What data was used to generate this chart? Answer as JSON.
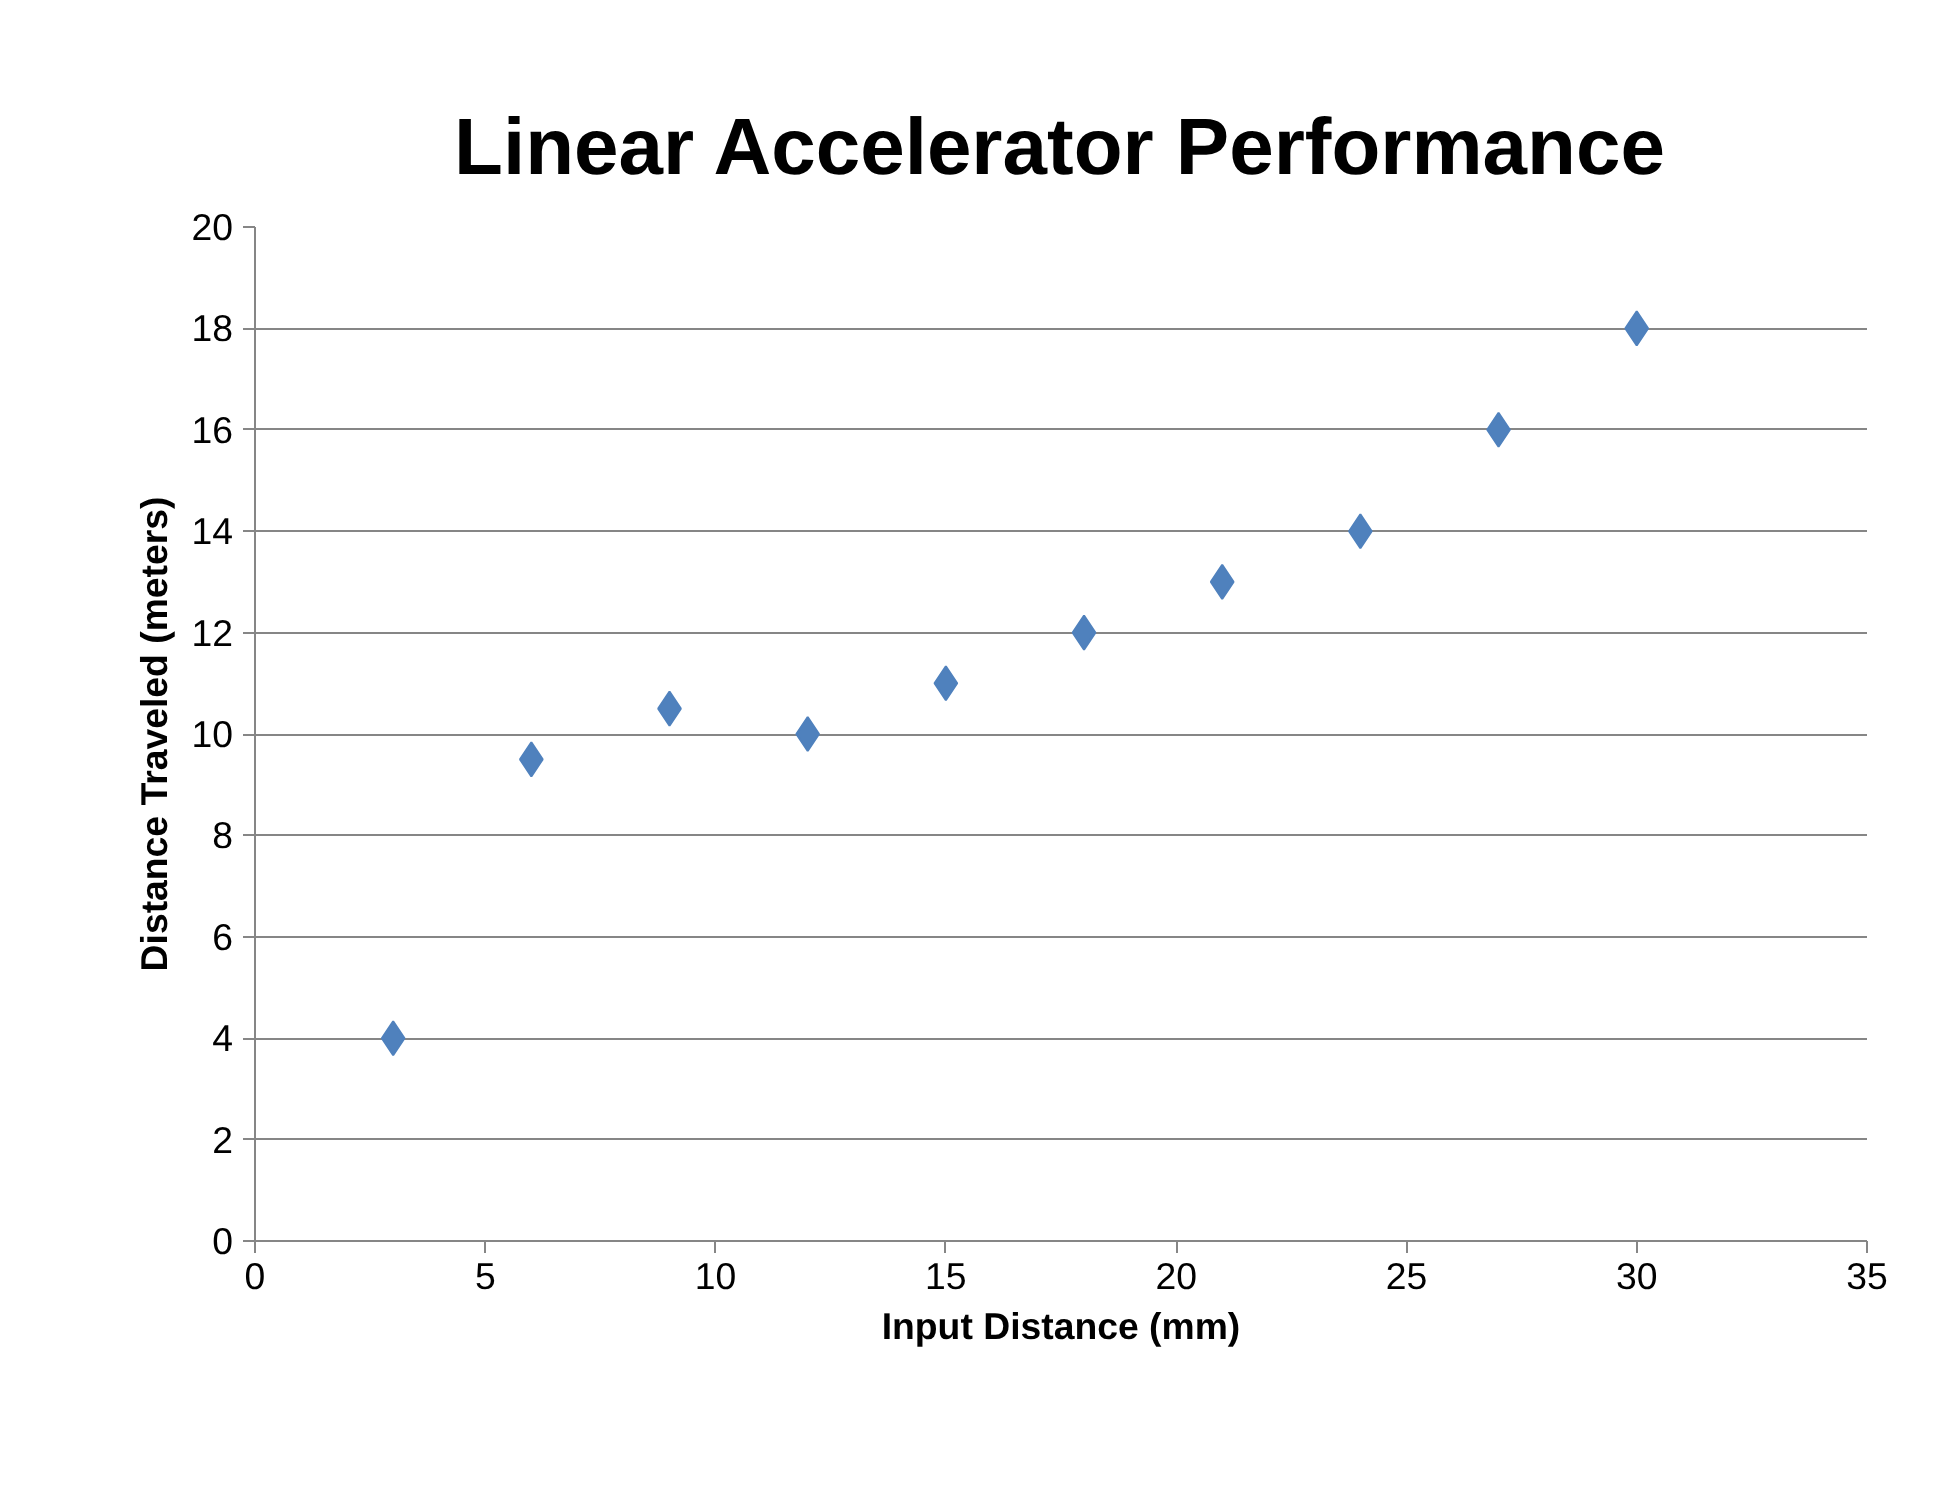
{
  "chart_data": {
    "type": "scatter",
    "title": "Linear Accelerator Performance",
    "xlabel": "Input Distance (mm)",
    "ylabel": "Distance Traveled (meters)",
    "x": [
      3,
      6,
      9,
      12,
      15,
      18,
      21,
      24,
      27,
      30
    ],
    "series": [
      {
        "color": "#4f81bd",
        "values": [
          4,
          9.5,
          10.5,
          10,
          11,
          12,
          13,
          14,
          16,
          18
        ]
      }
    ],
    "xlim": [
      0,
      35
    ],
    "xticks": [
      0,
      5,
      10,
      15,
      20,
      25,
      30,
      35
    ],
    "ylim": [
      0,
      20
    ],
    "yticks": [
      0,
      2,
      4,
      6,
      8,
      10,
      12,
      14,
      16,
      18,
      20
    ],
    "grid": "y",
    "marker": "diamond"
  }
}
